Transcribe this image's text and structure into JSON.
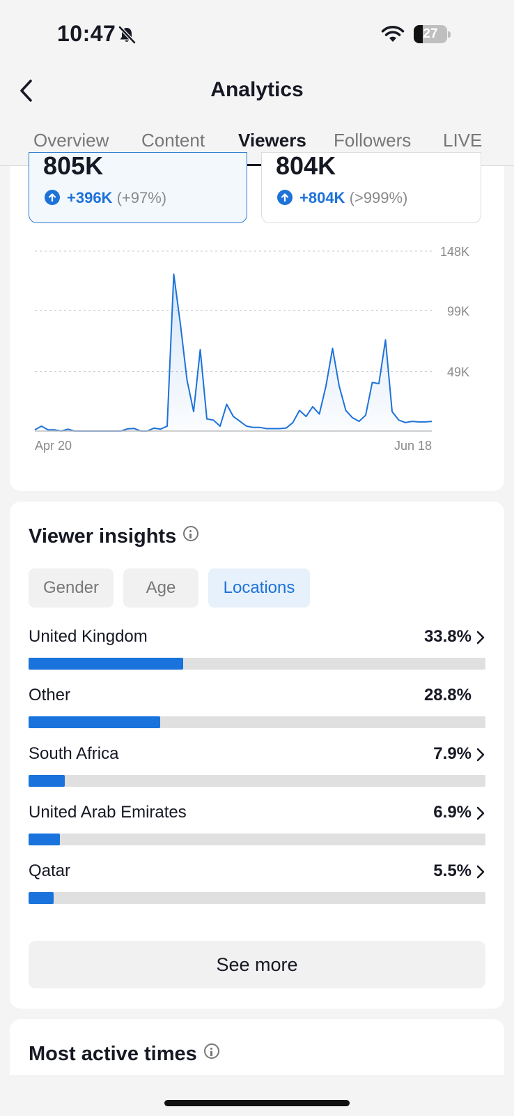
{
  "status_bar": {
    "time": "10:47",
    "battery": "27",
    "battery_level": 0.27,
    "icons": [
      "bell-muted-icon",
      "wifi-icon",
      "battery-icon"
    ]
  },
  "header": {
    "title": "Analytics",
    "back_icon": "chevron-left-icon"
  },
  "tabs": [
    {
      "label": "Overview",
      "active": false
    },
    {
      "label": "Content",
      "active": false
    },
    {
      "label": "Viewers",
      "active": true
    },
    {
      "label": "Followers",
      "active": false
    },
    {
      "label": "LIVE",
      "active": false
    }
  ],
  "stats": [
    {
      "value": "805K",
      "change": "+396K",
      "change_pct": "(+97%)",
      "selected": true
    },
    {
      "value": "804K",
      "change": "+804K",
      "change_pct": "(>999%)",
      "selected": false
    }
  ],
  "chart_data": {
    "type": "area",
    "x_start_label": "Apr 20",
    "x_end_label": "Jun 18",
    "y_tick_labels": [
      "148K",
      "99K",
      "49K"
    ],
    "y_ticks": [
      148000,
      99000,
      49000
    ],
    "ylim": [
      0,
      148000
    ],
    "grid": true,
    "series": [
      {
        "values": [
          1000,
          4000,
          1000,
          1000,
          0,
          1500,
          0,
          0,
          0,
          0,
          0,
          0,
          0,
          0,
          1800,
          2200,
          0,
          0,
          2400,
          1600,
          4000,
          129000,
          88000,
          42000,
          16000,
          67000,
          10000,
          9000,
          4000,
          22000,
          12000,
          8000,
          4000,
          3000,
          3000,
          2000,
          2000,
          2000,
          2500,
          7000,
          17000,
          12000,
          20000,
          14000,
          37000,
          68000,
          37000,
          17000,
          11000,
          8000,
          13000,
          40000,
          39000,
          75000,
          16000,
          9000,
          7000,
          8000,
          7500,
          7500,
          8000
        ]
      }
    ],
    "color": "#1d72d8"
  },
  "insights": {
    "title": "Viewer insights",
    "chips": [
      {
        "label": "Gender",
        "active": false
      },
      {
        "label": "Age",
        "active": false
      },
      {
        "label": "Locations",
        "active": true
      }
    ],
    "locations": [
      {
        "name": "United Kingdom",
        "value": "33.8%",
        "fraction": 0.338,
        "chevron": true
      },
      {
        "name": "Other",
        "value": "28.8%",
        "fraction": 0.288,
        "chevron": false
      },
      {
        "name": "South Africa",
        "value": "7.9%",
        "fraction": 0.079,
        "chevron": true
      },
      {
        "name": "United Arab Emirates",
        "value": "6.9%",
        "fraction": 0.069,
        "chevron": true
      },
      {
        "name": "Qatar",
        "value": "5.5%",
        "fraction": 0.055,
        "chevron": true
      }
    ],
    "see_more_label": "See more"
  },
  "active_times": {
    "title": "Most active times"
  }
}
